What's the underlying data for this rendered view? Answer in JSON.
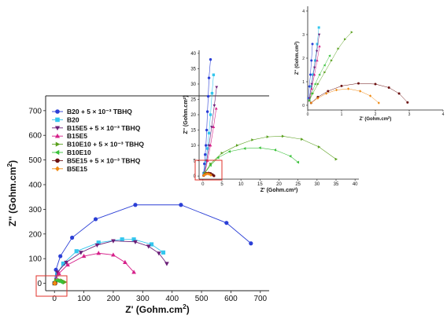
{
  "chart_data": [
    {
      "type": "scatter",
      "panel": "main",
      "xlabel": "Z' (Gohm.cm²)",
      "ylabel": "Z'' (Gohm.cm²)",
      "xlim": [
        -30,
        730
      ],
      "ylim": [
        -30,
        760
      ],
      "xticks": [
        "0",
        "100",
        "200",
        "300",
        "400",
        "500",
        "600",
        "700"
      ],
      "yticks": [
        "0",
        "100",
        "200",
        "300",
        "400",
        "500",
        "600",
        "700"
      ],
      "legend_position": "upper-left",
      "series": [
        {
          "name": "B20 + 5 × 10⁻³ TBHQ",
          "color": "#2b3fd6",
          "marker": "circle",
          "x": [
            0,
            5,
            20,
            60,
            140,
            275,
            430,
            585,
            668
          ],
          "y": [
            0,
            55,
            110,
            185,
            260,
            318,
            318,
            245,
            162
          ]
        },
        {
          "name": "B20",
          "color": "#33c6ee",
          "marker": "square",
          "x": [
            0,
            10,
            30,
            75,
            150,
            230,
            270,
            330,
            370
          ],
          "y": [
            0,
            40,
            80,
            130,
            165,
            178,
            178,
            158,
            125
          ]
        },
        {
          "name": "B15E5 + 5 × 10⁻³ TBHQ",
          "color": "#6b1f78",
          "marker": "triangle-down",
          "x": [
            0,
            10,
            40,
            90,
            145,
            200,
            275,
            320,
            355,
            382
          ],
          "y": [
            0,
            45,
            85,
            125,
            155,
            172,
            168,
            150,
            122,
            80
          ]
        },
        {
          "name": "B15E5",
          "color": "#d6208a",
          "marker": "triangle-up",
          "x": [
            0,
            15,
            45,
            100,
            150,
            200,
            240,
            270
          ],
          "y": [
            0,
            40,
            75,
            110,
            122,
            115,
            85,
            45
          ]
        },
        {
          "name": "B10E10 + 5 × 10⁻³ TBHQ",
          "color": "#5aa01e",
          "marker": "triangle-right",
          "x": [
            0,
            5,
            15,
            25,
            35
          ],
          "y": [
            0,
            12,
            13,
            11,
            5
          ]
        },
        {
          "name": "B10E10",
          "color": "#39c139",
          "marker": "triangle-left",
          "x": [
            0,
            4,
            12,
            20,
            25
          ],
          "y": [
            0,
            9,
            10,
            8,
            4
          ]
        },
        {
          "name": "B5E15 + 5 × 10⁻³ TBHQ",
          "color": "#6b1010",
          "marker": "circle",
          "x": [
            0,
            1,
            2,
            3
          ],
          "y": [
            0,
            0.8,
            0.9,
            0.2
          ]
        },
        {
          "name": "B5E15",
          "color": "#f08a12",
          "marker": "diamond",
          "x": [
            0,
            0.8,
            1.6,
            2.2
          ],
          "y": [
            0,
            0.6,
            0.7,
            0.1
          ]
        }
      ]
    },
    {
      "type": "scatter",
      "panel": "zoom-1",
      "xlabel": "Z' (Gohm.cm²)",
      "ylabel": "Z'' (Gohm.cm²)",
      "xlim": [
        -1,
        41
      ],
      "ylim": [
        -1,
        41
      ],
      "xticks": [
        "0",
        "5",
        "10",
        "15",
        "20",
        "25",
        "30",
        "35",
        "40"
      ],
      "yticks": [
        "0",
        "5",
        "10",
        "15",
        "20",
        "25",
        "30",
        "35",
        "40"
      ],
      "series": [
        {
          "name": "B20 + 5 × 10⁻³ TBHQ",
          "color": "#2b3fd6",
          "marker": "circle",
          "x": [
            0.2,
            0.4,
            0.6,
            0.8,
            1.0,
            1.2,
            1.4,
            1.6,
            2.0
          ],
          "y": [
            1,
            4,
            7,
            10,
            15,
            21,
            26,
            32,
            38
          ]
        },
        {
          "name": "B20",
          "color": "#33c6ee",
          "marker": "square",
          "x": [
            0.3,
            0.8,
            1.2,
            1.6,
            2.0,
            2.4,
            2.8
          ],
          "y": [
            1,
            5,
            9,
            14,
            20,
            27,
            33
          ]
        },
        {
          "name": "B15E5 + 5 × 10⁻³ TBHQ",
          "color": "#6b1f78",
          "marker": "triangle-down",
          "x": [
            0.4,
            1.0,
            1.6,
            2.3,
            3.0,
            3.6
          ],
          "y": [
            1,
            5,
            10,
            16,
            23,
            29
          ]
        },
        {
          "name": "B15E5",
          "color": "#d6208a",
          "marker": "triangle-up",
          "x": [
            0.5,
            1.2,
            2.0,
            2.8,
            3.5
          ],
          "y": [
            1,
            5,
            10,
            16,
            22
          ]
        },
        {
          "name": "B10E10 + 5 × 10⁻³ TBHQ",
          "color": "#5aa01e",
          "marker": "triangle-right",
          "x": [
            0.5,
            2.0,
            5.0,
            9.0,
            13.0,
            17.0,
            21.0,
            26.0,
            30.5,
            35.0
          ],
          "y": [
            1,
            4,
            7.5,
            10,
            11.8,
            12.8,
            13.0,
            12.0,
            9.5,
            5.5
          ]
        },
        {
          "name": "B10E10",
          "color": "#39c139",
          "marker": "triangle-left",
          "x": [
            0.5,
            2.0,
            4.0,
            7.0,
            11.0,
            15.0,
            19.0,
            23.0,
            25.0
          ],
          "y": [
            1,
            3.5,
            6,
            8,
            9,
            9.2,
            8.5,
            6.5,
            4.5
          ]
        },
        {
          "name": "B5E15 + 5 × 10⁻³ TBHQ",
          "color": "#6b1010",
          "marker": "circle",
          "x": [
            0.2,
            0.6,
            1.0,
            1.5,
            2.0,
            2.5,
            2.9
          ],
          "y": [
            0.2,
            0.6,
            0.9,
            0.95,
            0.85,
            0.5,
            0.1
          ]
        },
        {
          "name": "B5E15",
          "color": "#f08a12",
          "marker": "diamond",
          "x": [
            0.2,
            0.5,
            0.9,
            1.3,
            1.7,
            2.1
          ],
          "y": [
            0.2,
            0.5,
            0.7,
            0.75,
            0.6,
            0.3
          ]
        }
      ]
    },
    {
      "type": "scatter",
      "panel": "zoom-2",
      "xlabel": "Z' (Gohm.cm²)",
      "ylabel": "Z'' (Gohm.cm²)",
      "xlim": [
        0,
        4
      ],
      "ylim": [
        -0.2,
        4.2
      ],
      "xticks": [
        "0",
        "1",
        "2",
        "3",
        "4"
      ],
      "yticks": [
        "0",
        "1",
        "2",
        "3",
        "4"
      ],
      "series": [
        {
          "name": "B20 + 5 × 10⁻³ TBHQ",
          "color": "#2b3fd6",
          "marker": "circle",
          "x": [
            0.02,
            0.05,
            0.08,
            0.11,
            0.14
          ],
          "y": [
            0.3,
            0.8,
            1.3,
            1.9,
            2.6
          ]
        },
        {
          "name": "B20",
          "color": "#33c6ee",
          "marker": "square",
          "x": [
            0.05,
            0.1,
            0.15,
            0.22,
            0.28,
            0.33
          ],
          "y": [
            0.3,
            0.8,
            1.3,
            1.9,
            2.6,
            3.3
          ]
        },
        {
          "name": "B15E5 + 5 × 10⁻³ TBHQ",
          "color": "#6b1f78",
          "marker": "triangle-down",
          "x": [
            0.05,
            0.12,
            0.2,
            0.27,
            0.34
          ],
          "y": [
            0.3,
            0.9,
            1.6,
            2.3,
            3.0
          ]
        },
        {
          "name": "B15E5",
          "color": "#d6208a",
          "marker": "triangle-up",
          "x": [
            0.05,
            0.12,
            0.2,
            0.28,
            0.35
          ],
          "y": [
            0.2,
            0.7,
            1.3,
            1.9,
            2.5
          ]
        },
        {
          "name": "B10E10 + 5 × 10⁻³ TBHQ",
          "color": "#5aa01e",
          "marker": "triangle-right",
          "x": [
            0.05,
            0.15,
            0.3,
            0.5,
            0.7,
            0.9,
            1.1,
            1.3
          ],
          "y": [
            0.2,
            0.5,
            0.9,
            1.4,
            1.9,
            2.4,
            2.8,
            3.1
          ]
        },
        {
          "name": "B10E10",
          "color": "#39c139",
          "marker": "triangle-left",
          "x": [
            0.05,
            0.12,
            0.22,
            0.35,
            0.5,
            0.65
          ],
          "y": [
            0.2,
            0.5,
            0.9,
            1.3,
            1.7,
            2.1
          ]
        },
        {
          "name": "B5E15 + 5 × 10⁻³ TBHQ",
          "color": "#6b1010",
          "marker": "circle",
          "x": [
            0.1,
            0.3,
            0.6,
            1.0,
            1.5,
            2.0,
            2.4,
            2.7,
            2.95
          ],
          "y": [
            0.1,
            0.35,
            0.6,
            0.82,
            0.93,
            0.9,
            0.75,
            0.5,
            0.12
          ]
        },
        {
          "name": "B5E15",
          "color": "#f08a12",
          "marker": "diamond",
          "x": [
            0.1,
            0.3,
            0.55,
            0.85,
            1.2,
            1.55,
            1.85,
            2.1
          ],
          "y": [
            0.1,
            0.3,
            0.5,
            0.65,
            0.7,
            0.6,
            0.4,
            0.1
          ]
        }
      ]
    }
  ]
}
